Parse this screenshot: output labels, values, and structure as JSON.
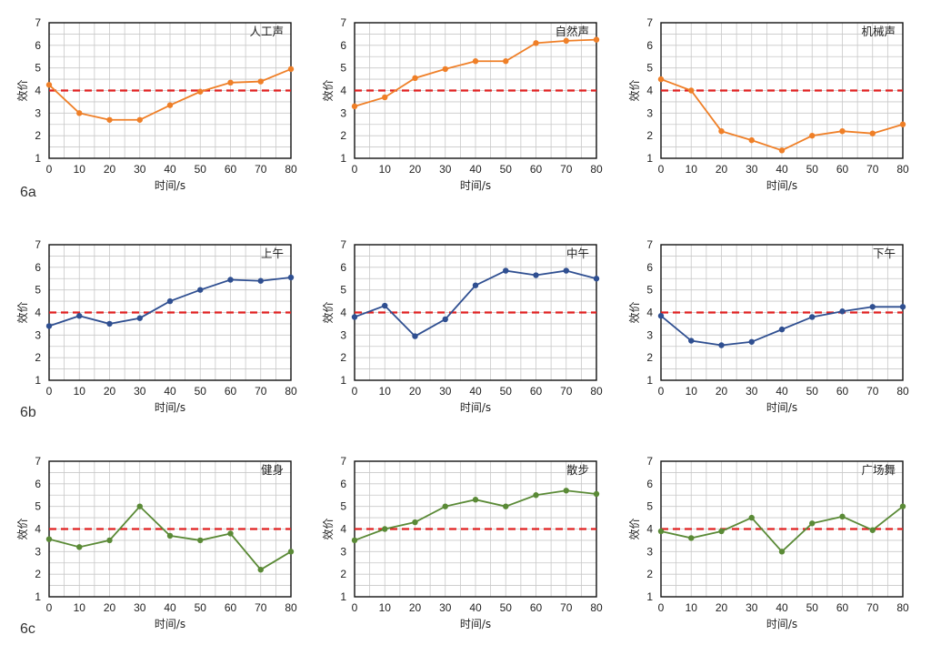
{
  "rows": [
    {
      "label": "6a",
      "color": "#ef7f27"
    },
    {
      "label": "6b",
      "color": "#2f4f91"
    },
    {
      "label": "6c",
      "color": "#5a8a36"
    }
  ],
  "threshold_color": "#e02020",
  "chart_data": [
    {
      "type": "line",
      "title": "人工声",
      "xlabel": "时间/s",
      "ylabel": "效价",
      "xlim": [
        0,
        80
      ],
      "ylim": [
        1,
        7
      ],
      "grid": true,
      "threshold": 4,
      "x": [
        0,
        10,
        20,
        30,
        40,
        50,
        60,
        70,
        80
      ],
      "values": [
        4.25,
        3.0,
        2.7,
        2.7,
        3.35,
        3.95,
        4.35,
        4.4,
        4.95
      ]
    },
    {
      "type": "line",
      "title": "自然声",
      "xlabel": "时间/s",
      "ylabel": "效价",
      "xlim": [
        0,
        80
      ],
      "ylim": [
        1,
        7
      ],
      "grid": true,
      "threshold": 4,
      "x": [
        0,
        10,
        20,
        30,
        40,
        50,
        60,
        70,
        80
      ],
      "values": [
        3.3,
        3.7,
        4.55,
        4.95,
        5.3,
        5.3,
        6.1,
        6.2,
        6.25
      ]
    },
    {
      "type": "line",
      "title": "机械声",
      "xlabel": "时间/s",
      "ylabel": "效价",
      "xlim": [
        0,
        80
      ],
      "ylim": [
        1,
        7
      ],
      "grid": true,
      "threshold": 4,
      "x": [
        0,
        10,
        20,
        30,
        40,
        50,
        60,
        70,
        80
      ],
      "values": [
        4.5,
        4.0,
        2.2,
        1.8,
        1.35,
        2.0,
        2.2,
        2.1,
        2.5
      ]
    },
    {
      "type": "line",
      "title": "上午",
      "xlabel": "时间/s",
      "ylabel": "效价",
      "xlim": [
        0,
        80
      ],
      "ylim": [
        1,
        7
      ],
      "grid": true,
      "threshold": 4,
      "x": [
        0,
        10,
        20,
        30,
        40,
        50,
        60,
        70,
        80
      ],
      "values": [
        3.4,
        3.85,
        3.5,
        3.75,
        4.5,
        5.0,
        5.45,
        5.4,
        5.55
      ]
    },
    {
      "type": "line",
      "title": "中午",
      "xlabel": "时间/s",
      "ylabel": "效价",
      "xlim": [
        0,
        80
      ],
      "ylim": [
        1,
        7
      ],
      "grid": true,
      "threshold": 4,
      "x": [
        0,
        10,
        20,
        30,
        40,
        50,
        60,
        70,
        80
      ],
      "values": [
        3.8,
        4.3,
        2.95,
        3.7,
        5.2,
        5.85,
        5.65,
        5.85,
        5.5
      ]
    },
    {
      "type": "line",
      "title": "下午",
      "xlabel": "时间/s",
      "ylabel": "效价",
      "xlim": [
        0,
        80
      ],
      "ylim": [
        1,
        7
      ],
      "grid": true,
      "threshold": 4,
      "x": [
        0,
        10,
        20,
        30,
        40,
        50,
        60,
        70,
        80
      ],
      "values": [
        3.85,
        2.75,
        2.55,
        2.7,
        3.25,
        3.8,
        4.05,
        4.25,
        4.25
      ]
    },
    {
      "type": "line",
      "title": "健身",
      "xlabel": "时间/s",
      "ylabel": "效价",
      "xlim": [
        0,
        80
      ],
      "ylim": [
        1,
        7
      ],
      "grid": true,
      "threshold": 4,
      "x": [
        0,
        10,
        20,
        30,
        40,
        50,
        60,
        70,
        80
      ],
      "values": [
        3.55,
        3.2,
        3.5,
        5.0,
        3.7,
        3.5,
        3.8,
        2.2,
        3.0
      ]
    },
    {
      "type": "line",
      "title": "散步",
      "xlabel": "时间/s",
      "ylabel": "效价",
      "xlim": [
        0,
        80
      ],
      "ylim": [
        1,
        7
      ],
      "grid": true,
      "threshold": 4,
      "x": [
        0,
        10,
        20,
        30,
        40,
        50,
        60,
        70,
        80
      ],
      "values": [
        3.5,
        4.0,
        4.3,
        5.0,
        5.3,
        5.0,
        5.5,
        5.7,
        5.55
      ]
    },
    {
      "type": "line",
      "title": "广场舞",
      "xlabel": "时间/s",
      "ylabel": "效价",
      "xlim": [
        0,
        80
      ],
      "ylim": [
        1,
        7
      ],
      "grid": true,
      "threshold": 4,
      "x": [
        0,
        10,
        20,
        30,
        40,
        50,
        60,
        70,
        80
      ],
      "values": [
        3.9,
        3.6,
        3.9,
        4.5,
        3.0,
        4.25,
        4.55,
        3.95,
        5.0
      ]
    }
  ]
}
